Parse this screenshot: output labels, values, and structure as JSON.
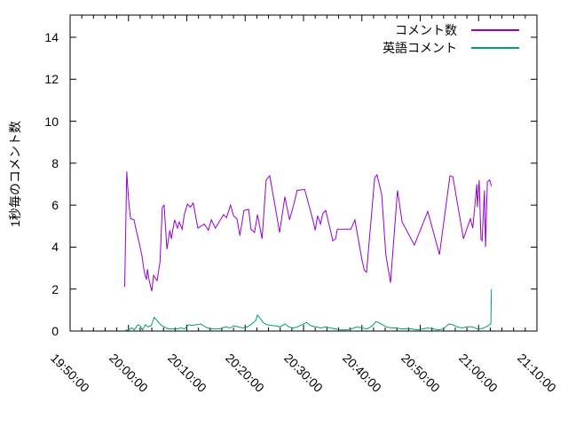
{
  "chart": {
    "y_axis_title": "1秒毎のコメント数",
    "background": "#ffffff",
    "frame_color": "#000000"
  },
  "chart_data": {
    "type": "line",
    "title": "",
    "xlabel": "",
    "ylabel": "1秒毎のコメント数",
    "grid": false,
    "legend_position": "top-right-inside",
    "x_axis": {
      "start": "19:50:00",
      "end": "21:10:00",
      "unit": "time (HH:MM:SS)",
      "tick_labels": [
        "19:50:00",
        "20:00:00",
        "20:10:00",
        "20:20:00",
        "20:30:00",
        "20:40:00",
        "20:50:00",
        "21:00:00",
        "21:10:00"
      ],
      "major_tick_minutes": 10,
      "minor_tick_minutes": 2,
      "range_minutes": [
        0,
        80
      ],
      "label_rotation_deg": 45
    },
    "y_axis": {
      "label": "1秒毎のコメント数",
      "ticks": [
        0,
        2,
        4,
        6,
        8,
        10,
        12,
        14
      ],
      "range": [
        0,
        15.05
      ]
    },
    "series": [
      {
        "name": "コメント数",
        "color": "#9400d3",
        "x_unit": "minutes after 19:50:00",
        "points": [
          [
            9.35,
            2.1
          ],
          [
            9.7,
            7.6
          ],
          [
            10.0,
            6.3
          ],
          [
            10.35,
            5.35
          ],
          [
            10.95,
            5.3
          ],
          [
            11.25,
            4.9
          ],
          [
            11.75,
            4.3
          ],
          [
            12.3,
            3.6
          ],
          [
            12.55,
            3.1
          ],
          [
            12.8,
            2.7
          ],
          [
            13.1,
            2.45
          ],
          [
            13.25,
            2.95
          ],
          [
            13.55,
            2.4
          ],
          [
            14.0,
            1.9
          ],
          [
            14.3,
            2.65
          ],
          [
            14.9,
            2.4
          ],
          [
            15.4,
            3.3
          ],
          [
            15.8,
            5.9
          ],
          [
            16.1,
            6.0
          ],
          [
            16.6,
            3.9
          ],
          [
            17.1,
            4.8
          ],
          [
            17.35,
            4.4
          ],
          [
            17.9,
            5.3
          ],
          [
            18.4,
            4.9
          ],
          [
            18.7,
            5.2
          ],
          [
            19.2,
            4.85
          ],
          [
            19.6,
            5.6
          ],
          [
            20.1,
            6.05
          ],
          [
            20.6,
            5.9
          ],
          [
            21.1,
            6.1
          ],
          [
            21.9,
            4.9
          ],
          [
            23.0,
            5.1
          ],
          [
            23.7,
            4.8
          ],
          [
            24.2,
            5.3
          ],
          [
            24.9,
            4.9
          ],
          [
            26.3,
            5.55
          ],
          [
            26.8,
            5.4
          ],
          [
            27.5,
            6.0
          ],
          [
            28.0,
            5.5
          ],
          [
            28.6,
            5.35
          ],
          [
            29.1,
            4.55
          ],
          [
            29.8,
            5.75
          ],
          [
            30.6,
            5.8
          ],
          [
            31.0,
            4.85
          ],
          [
            31.6,
            4.7
          ],
          [
            32.1,
            5.55
          ],
          [
            32.9,
            4.4
          ],
          [
            33.6,
            7.2
          ],
          [
            34.2,
            7.4
          ],
          [
            35.1,
            6.0
          ],
          [
            35.9,
            4.7
          ],
          [
            36.8,
            6.4
          ],
          [
            37.6,
            5.3
          ],
          [
            38.2,
            5.9
          ],
          [
            38.9,
            6.7
          ],
          [
            40.2,
            6.75
          ],
          [
            41.5,
            5.4
          ],
          [
            42.0,
            4.8
          ],
          [
            42.4,
            5.5
          ],
          [
            42.9,
            5.1
          ],
          [
            43.3,
            5.6
          ],
          [
            43.8,
            5.75
          ],
          [
            44.7,
            4.7
          ],
          [
            45.0,
            4.3
          ],
          [
            45.5,
            4.4
          ],
          [
            45.8,
            4.85
          ],
          [
            48.1,
            4.85
          ],
          [
            48.8,
            5.3
          ],
          [
            50.0,
            3.4
          ],
          [
            50.4,
            2.9
          ],
          [
            50.8,
            2.8
          ],
          [
            52.2,
            7.3
          ],
          [
            52.6,
            7.45
          ],
          [
            53.4,
            6.5
          ],
          [
            54.1,
            3.65
          ],
          [
            54.9,
            2.3
          ],
          [
            56.1,
            6.7
          ],
          [
            56.9,
            5.2
          ],
          [
            59.0,
            4.1
          ],
          [
            61.3,
            5.7
          ],
          [
            63.3,
            3.65
          ],
          [
            65.1,
            7.4
          ],
          [
            65.6,
            7.35
          ],
          [
            67.4,
            4.4
          ],
          [
            68.6,
            5.35
          ],
          [
            69.0,
            4.9
          ],
          [
            69.7,
            7.0
          ],
          [
            69.8,
            5.9
          ],
          [
            70.1,
            7.2
          ],
          [
            70.4,
            4.4
          ],
          [
            70.6,
            4.3
          ],
          [
            71.0,
            6.7
          ],
          [
            71.2,
            4.0
          ],
          [
            71.5,
            7.1
          ],
          [
            71.9,
            7.2
          ],
          [
            72.2,
            6.9
          ]
        ]
      },
      {
        "name": "英語コメント",
        "color": "#009e73",
        "x_unit": "minutes after 19:50:00",
        "points": [
          [
            9.35,
            0.02
          ],
          [
            9.9,
            0.05
          ],
          [
            10.6,
            0.15
          ],
          [
            11.0,
            0.05
          ],
          [
            11.6,
            0.3
          ],
          [
            12.0,
            0.25
          ],
          [
            12.4,
            0.05
          ],
          [
            12.9,
            0.3
          ],
          [
            13.3,
            0.2
          ],
          [
            13.9,
            0.25
          ],
          [
            14.4,
            0.65
          ],
          [
            14.9,
            0.5
          ],
          [
            15.5,
            0.3
          ],
          [
            16.1,
            0.2
          ],
          [
            16.8,
            0.1
          ],
          [
            17.5,
            0.1
          ],
          [
            18.3,
            0.1
          ],
          [
            19.0,
            0.15
          ],
          [
            19.6,
            0.1
          ],
          [
            20.3,
            0.3
          ],
          [
            20.9,
            0.27
          ],
          [
            21.6,
            0.3
          ],
          [
            22.4,
            0.34
          ],
          [
            23.2,
            0.2
          ],
          [
            24.0,
            0.1
          ],
          [
            24.9,
            0.1
          ],
          [
            25.8,
            0.12
          ],
          [
            26.6,
            0.2
          ],
          [
            27.4,
            0.15
          ],
          [
            28.0,
            0.25
          ],
          [
            28.8,
            0.2
          ],
          [
            29.6,
            0.15
          ],
          [
            30.4,
            0.2
          ],
          [
            31.2,
            0.35
          ],
          [
            31.8,
            0.5
          ],
          [
            32.1,
            0.76
          ],
          [
            32.6,
            0.6
          ],
          [
            33.1,
            0.4
          ],
          [
            33.7,
            0.3
          ],
          [
            34.4,
            0.27
          ],
          [
            35.2,
            0.25
          ],
          [
            36.0,
            0.2
          ],
          [
            36.8,
            0.34
          ],
          [
            37.5,
            0.2
          ],
          [
            38.2,
            0.15
          ],
          [
            39.0,
            0.2
          ],
          [
            39.7,
            0.3
          ],
          [
            40.5,
            0.41
          ],
          [
            41.3,
            0.25
          ],
          [
            42.1,
            0.2
          ],
          [
            43.0,
            0.15
          ],
          [
            43.8,
            0.2
          ],
          [
            44.6,
            0.15
          ],
          [
            45.5,
            0.1
          ],
          [
            46.4,
            0.05
          ],
          [
            47.3,
            0.05
          ],
          [
            48.2,
            0.1
          ],
          [
            49.1,
            0.2
          ],
          [
            50.0,
            0.15
          ],
          [
            50.9,
            0.1
          ],
          [
            51.8,
            0.25
          ],
          [
            52.4,
            0.45
          ],
          [
            52.9,
            0.4
          ],
          [
            53.5,
            0.3
          ],
          [
            54.2,
            0.2
          ],
          [
            55.0,
            0.15
          ],
          [
            55.9,
            0.15
          ],
          [
            56.8,
            0.1
          ],
          [
            57.7,
            0.12
          ],
          [
            58.6,
            0.1
          ],
          [
            59.5,
            0.05
          ],
          [
            60.4,
            0.1
          ],
          [
            61.3,
            0.15
          ],
          [
            62.2,
            0.1
          ],
          [
            63.1,
            0.05
          ],
          [
            64.0,
            0.1
          ],
          [
            64.9,
            0.34
          ],
          [
            65.6,
            0.3
          ],
          [
            66.3,
            0.2
          ],
          [
            67.1,
            0.15
          ],
          [
            68.0,
            0.2
          ],
          [
            68.9,
            0.2
          ],
          [
            69.8,
            0.1
          ],
          [
            70.6,
            0.12
          ],
          [
            71.3,
            0.2
          ],
          [
            71.9,
            0.3
          ],
          [
            72.1,
            0.35
          ],
          [
            72.2,
            2.0
          ]
        ]
      }
    ]
  }
}
